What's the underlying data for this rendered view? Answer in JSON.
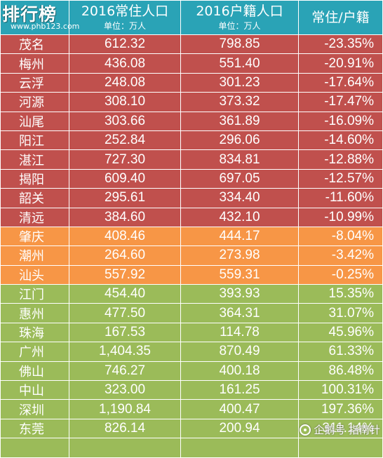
{
  "logo": {
    "text": "排行榜",
    "url": "www.phb123.com"
  },
  "header": {
    "col1": {
      "title": "2016常住人口",
      "unit": "单位：万人"
    },
    "col2": {
      "title": "2016户籍人口",
      "unit": "单位：万人"
    },
    "col3": {
      "title": "常住/户籍"
    }
  },
  "rows": [
    {
      "city": "茂名",
      "resident": "612.32",
      "registered": "798.85",
      "ratio": "-23.35%",
      "group": "red"
    },
    {
      "city": "梅州",
      "resident": "436.08",
      "registered": "551.40",
      "ratio": "-20.91%",
      "group": "red"
    },
    {
      "city": "云浮",
      "resident": "248.08",
      "registered": "301.23",
      "ratio": "-17.64%",
      "group": "red"
    },
    {
      "city": "河源",
      "resident": "308.10",
      "registered": "373.32",
      "ratio": "-17.47%",
      "group": "red"
    },
    {
      "city": "汕尾",
      "resident": "303.66",
      "registered": "361.89",
      "ratio": "-16.09%",
      "group": "red"
    },
    {
      "city": "阳江",
      "resident": "252.84",
      "registered": "296.06",
      "ratio": "-14.60%",
      "group": "red"
    },
    {
      "city": "湛江",
      "resident": "727.30",
      "registered": "834.81",
      "ratio": "-12.88%",
      "group": "red"
    },
    {
      "city": "揭阳",
      "resident": "609.40",
      "registered": "697.05",
      "ratio": "-12.57%",
      "group": "red"
    },
    {
      "city": "韶关",
      "resident": "295.61",
      "registered": "334.40",
      "ratio": "-11.60%",
      "group": "red"
    },
    {
      "city": "清远",
      "resident": "384.60",
      "registered": "432.10",
      "ratio": "-10.99%",
      "group": "red"
    },
    {
      "city": "肇庆",
      "resident": "408.46",
      "registered": "444.17",
      "ratio": "-8.04%",
      "group": "orange"
    },
    {
      "city": "潮州",
      "resident": "264.60",
      "registered": "273.98",
      "ratio": "-3.42%",
      "group": "orange"
    },
    {
      "city": "汕头",
      "resident": "557.92",
      "registered": "559.31",
      "ratio": "-0.25%",
      "group": "orange"
    },
    {
      "city": "江门",
      "resident": "454.40",
      "registered": "393.93",
      "ratio": "15.35%",
      "group": "green"
    },
    {
      "city": "惠州",
      "resident": "477.50",
      "registered": "364.31",
      "ratio": "31.07%",
      "group": "green"
    },
    {
      "city": "珠海",
      "resident": "167.53",
      "registered": "114.78",
      "ratio": "45.96%",
      "group": "green"
    },
    {
      "city": "广州",
      "resident": "1,404.35",
      "registered": "870.49",
      "ratio": "61.33%",
      "group": "green"
    },
    {
      "city": "佛山",
      "resident": "746.27",
      "registered": "400.18",
      "ratio": "86.48%",
      "group": "green"
    },
    {
      "city": "中山",
      "resident": "323.00",
      "registered": "161.25",
      "ratio": "100.31%",
      "group": "green"
    },
    {
      "city": "深圳",
      "resident": "1,190.84",
      "registered": "400.47",
      "ratio": "197.36%",
      "group": "green"
    },
    {
      "city": "东莞",
      "resident": "826.14",
      "registered": "200.94",
      "ratio": "311.14%",
      "group": "green"
    },
    {
      "city": "",
      "resident": "",
      "registered": "",
      "ratio": "",
      "group": "green"
    }
  ],
  "watermark": "企鹅号 指南针",
  "colors": {
    "header": "#2aa3b6",
    "red": "#c0504d",
    "orange": "#f79646",
    "green": "#9bbb59"
  }
}
